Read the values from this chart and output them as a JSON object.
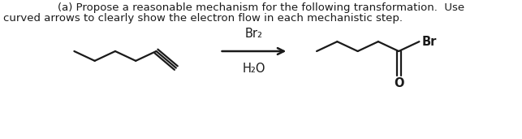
{
  "title_line1": "(a) Propose a reasonable mechanism for the following transformation.  Use",
  "title_line2": "curved arrows to clearly show the electron flow in each mechanistic step.",
  "reagent_top": "Br₂",
  "reagent_bottom": "H₂O",
  "br_label": "Br",
  "o_label": "O",
  "background": "#ffffff",
  "text_color": "#1a1a1a",
  "font_size_title": 9.5,
  "font_size_chem": 10.5,
  "line_width": 1.6
}
